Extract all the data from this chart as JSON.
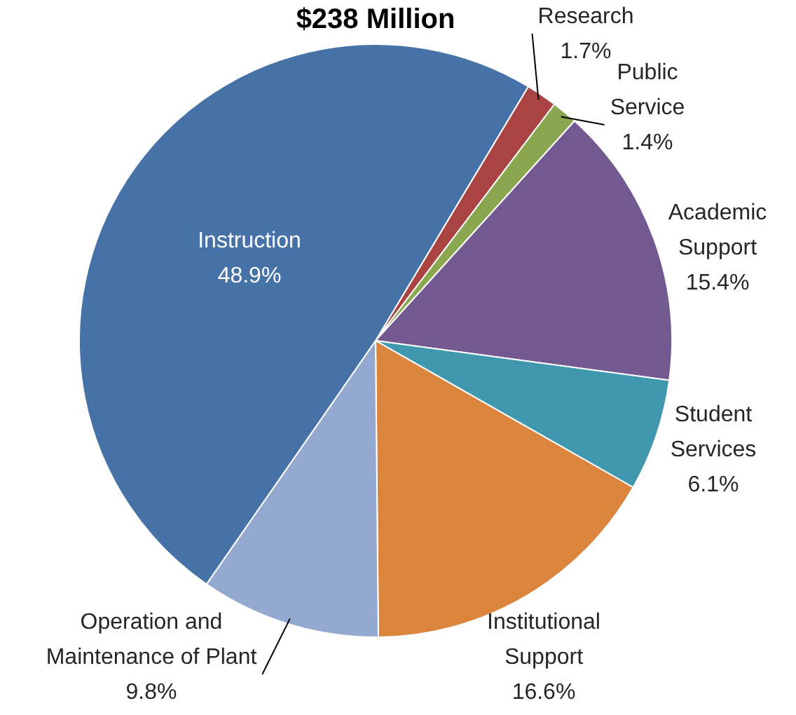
{
  "chart_data": {
    "type": "pie",
    "title": "$238 Million",
    "categories": [
      "Research",
      "Public Service",
      "Academic Support",
      "Student Services",
      "Institutional Support",
      "Operation and Maintenance of Plant",
      "Instruction"
    ],
    "values": [
      1.7,
      1.4,
      15.4,
      6.1,
      16.6,
      9.8,
      48.9
    ],
    "value_labels": [
      "1.7%",
      "1.4%",
      "15.4%",
      "6.1%",
      "16.6%",
      "9.8%",
      "48.9%"
    ],
    "colors": [
      "#a94442",
      "#8aa64f",
      "#72598f",
      "#4098ae",
      "#db843d",
      "#93a9cf",
      "#4672a8"
    ],
    "legend": false
  }
}
